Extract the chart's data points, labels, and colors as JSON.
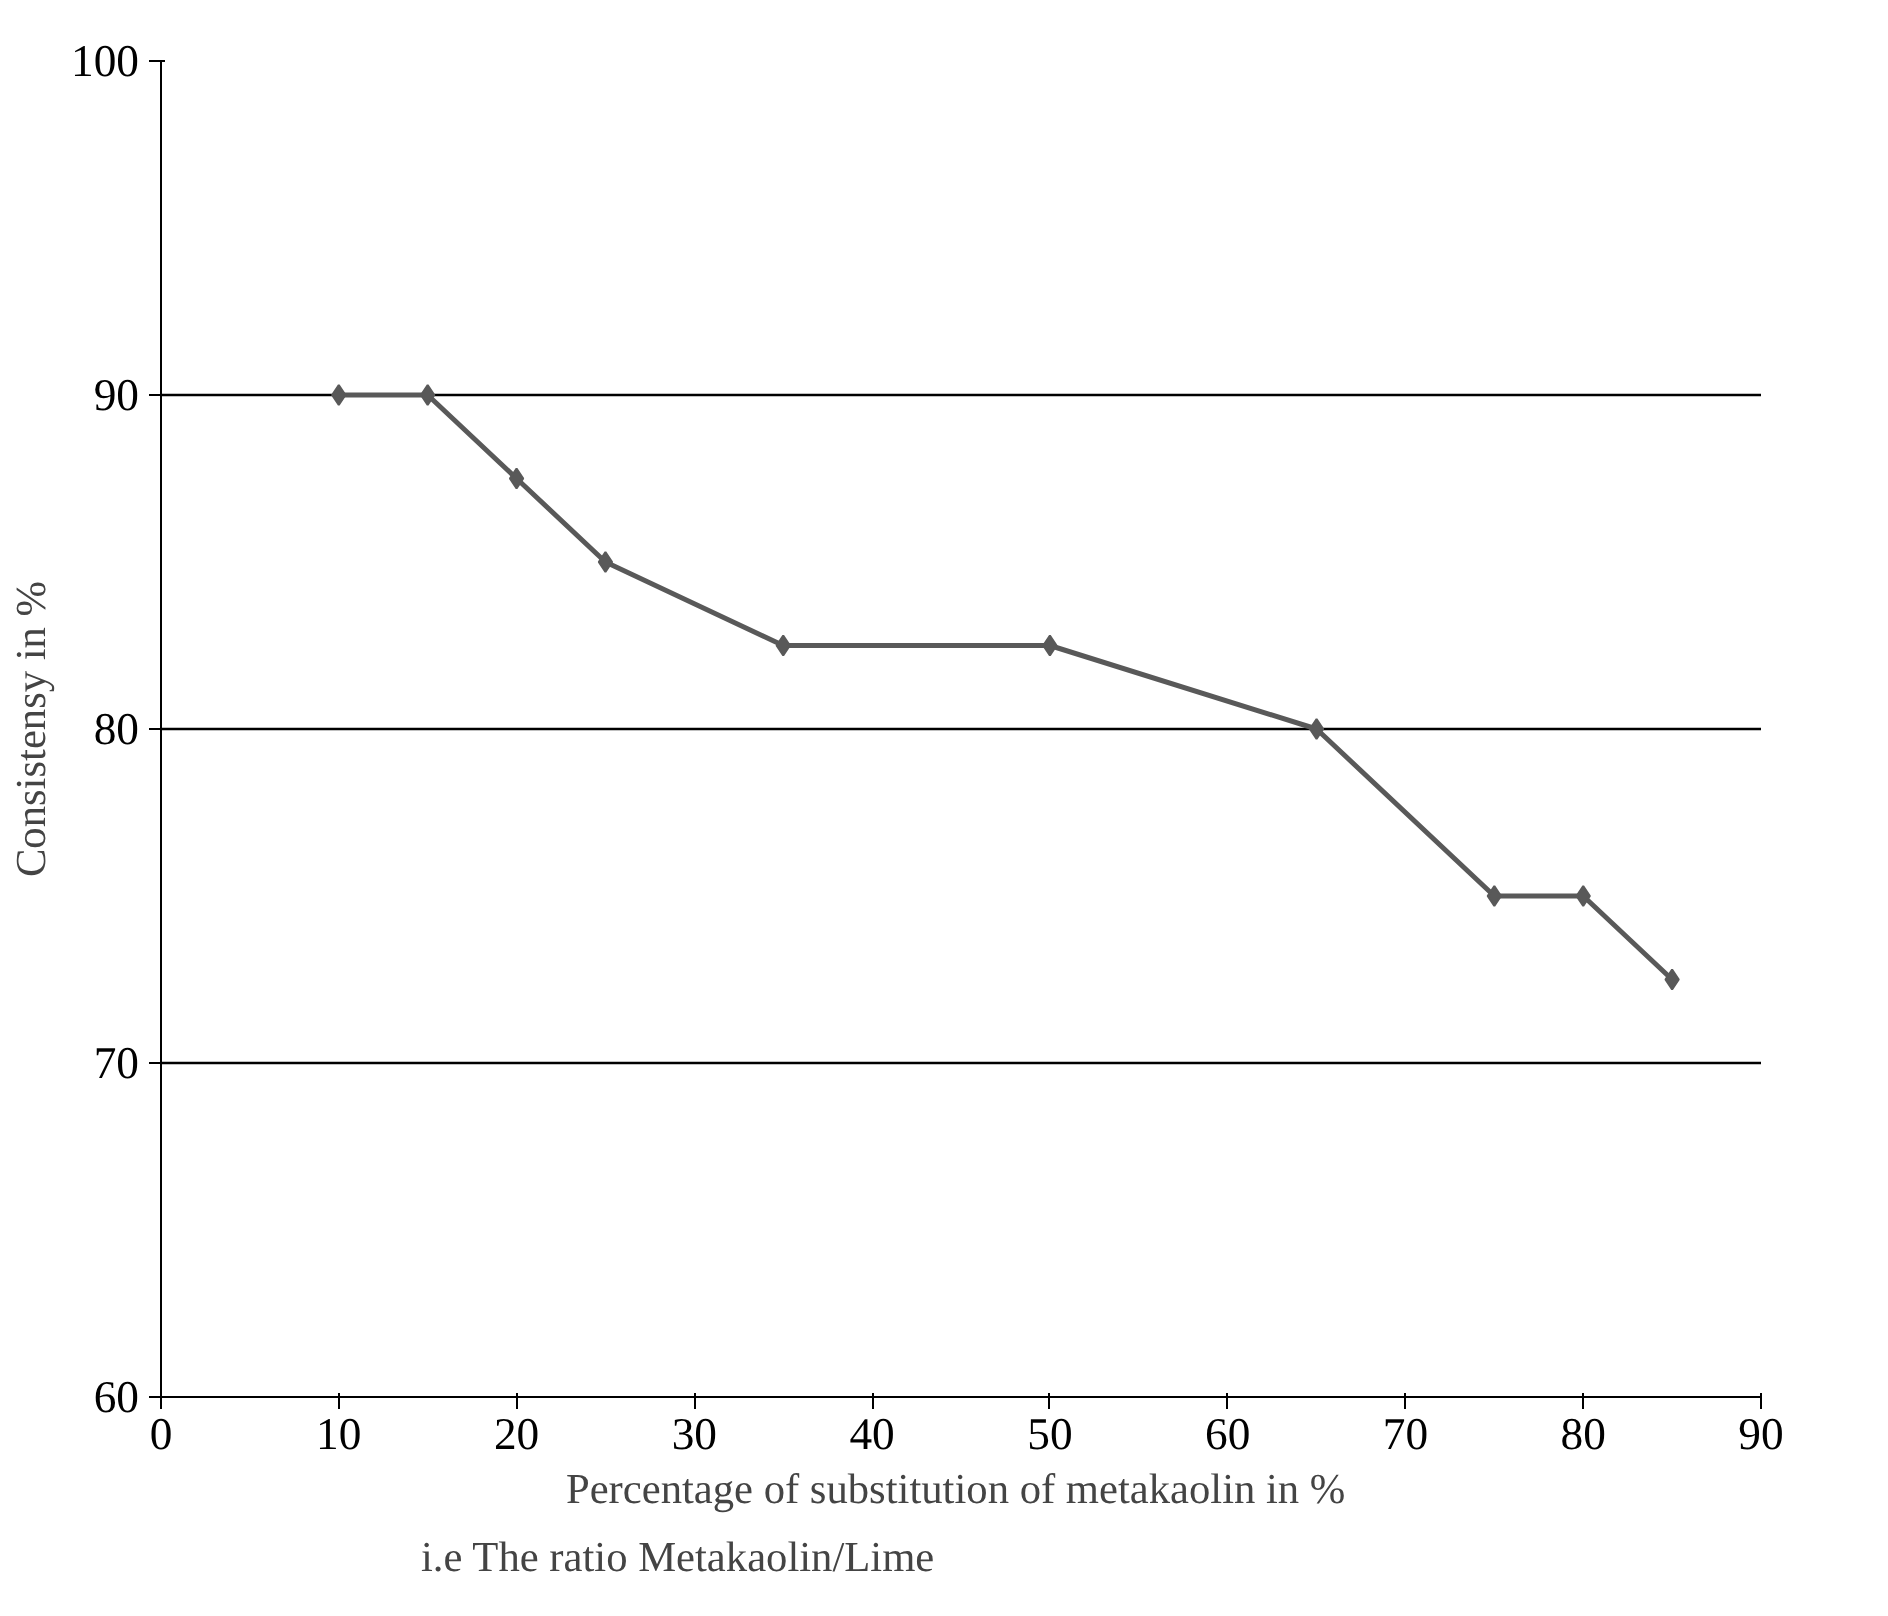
{
  "chart_data": {
    "type": "line",
    "xlabel": "Percentage of substitution of metakaolin  in %",
    "ylabel": "Consistensy in %",
    "annotations": [
      "i.e The ratio Metakaolin/Lime"
    ],
    "x": [
      10,
      15,
      20,
      25,
      35,
      50,
      65,
      75,
      80,
      85
    ],
    "series": [
      {
        "color": "#595959",
        "values": [
          90,
          90,
          87.5,
          85,
          82.5,
          82.5,
          80,
          75,
          75,
          72.5
        ]
      }
    ],
    "xlim": [
      0,
      90
    ],
    "ylim": [
      60,
      100
    ],
    "xticks": [
      0,
      10,
      20,
      30,
      40,
      50,
      60,
      70,
      80,
      90
    ],
    "yticks": [
      60,
      70,
      80,
      90,
      100
    ],
    "grid": "y",
    "marker": "diamond",
    "line_style": "solid"
  }
}
